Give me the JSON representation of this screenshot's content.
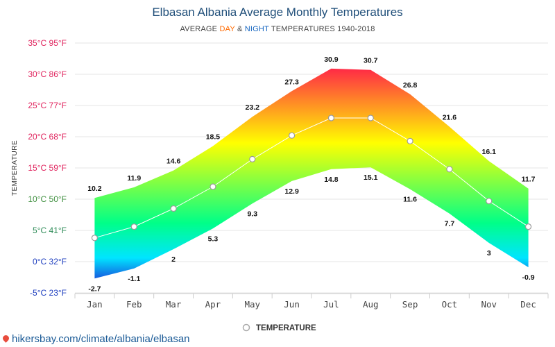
{
  "header": {
    "title": "Elbasan Albania Average Monthly Temperatures",
    "subtitle_prefix": "AVERAGE ",
    "subtitle_day": "DAY",
    "subtitle_amp": " & ",
    "subtitle_night": "NIGHT",
    "subtitle_suffix": " TEMPERATURES 1940-2018"
  },
  "source": {
    "text": "hikersbay.com/climate/albania/elbasan"
  },
  "colors": {
    "day_label": "#ff6a00",
    "night_label": "#1565c0",
    "hot_tick": "#e0245e",
    "cold_tick": "#1f3fbf",
    "band_top": "#ff1a4b",
    "band_mid": "#ffff00",
    "band_low": "#00ff88",
    "band_cold": "#00e5ff",
    "band_coldest": "#1a3fd9"
  },
  "chart_data": {
    "type": "area",
    "title": "Elbasan Albania Average Monthly Temperatures",
    "ylabel": "TEMPERATURE",
    "categories": [
      "Jan",
      "Feb",
      "Mar",
      "Apr",
      "May",
      "Jun",
      "Jul",
      "Aug",
      "Sep",
      "Oct",
      "Nov",
      "Dec"
    ],
    "ylim": [
      -5,
      35
    ],
    "yticks": [
      {
        "value": 35,
        "label": "35°C 95°F"
      },
      {
        "value": 30,
        "label": "30°C 86°F"
      },
      {
        "value": 25,
        "label": "25°C 77°F"
      },
      {
        "value": 20,
        "label": "20°C 68°F"
      },
      {
        "value": 15,
        "label": "15°C 59°F"
      },
      {
        "value": 10,
        "label": "10°C 50°F"
      },
      {
        "value": 5,
        "label": "5°C 41°F"
      },
      {
        "value": 0,
        "label": "0°C 32°F"
      },
      {
        "value": -5,
        "label": "-5°C 23°F"
      }
    ],
    "grid": true,
    "legend_position": "bottom",
    "series": [
      {
        "values": [
          10.2,
          11.9,
          14.6,
          18.5,
          23.2,
          27.3,
          30.9,
          30.7,
          26.8,
          21.6,
          16.1,
          11.7
        ]
      },
      {
        "values": [
          -2.7,
          -1.1,
          2,
          5.3,
          9.3,
          12.9,
          14.8,
          15.1,
          11.6,
          7.7,
          3,
          -0.9
        ]
      },
      {
        "name": "TEMPERATURE",
        "values": [
          3.8,
          5.6,
          8.5,
          12.0,
          16.4,
          20.2,
          23.0,
          23.0,
          19.3,
          14.8,
          9.7,
          5.6
        ]
      }
    ]
  }
}
